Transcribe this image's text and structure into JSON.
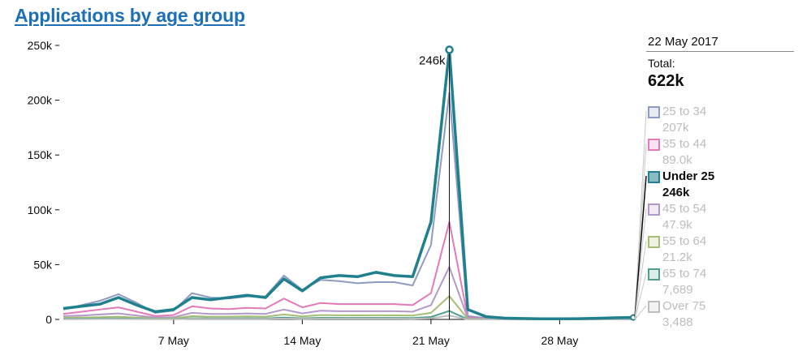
{
  "title": "Applications by age group",
  "tooltip": {
    "date": "22 May 2017",
    "total_label": "Total:",
    "total_value": "622k",
    "peak_label": "246k"
  },
  "chart_data": {
    "type": "line",
    "title": "Applications by age group",
    "xlabel": "",
    "ylabel": "",
    "x": [
      "1 May",
      "2 May",
      "3 May",
      "4 May",
      "5 May",
      "6 May",
      "7 May",
      "8 May",
      "9 May",
      "10 May",
      "11 May",
      "12 May",
      "13 May",
      "14 May",
      "15 May",
      "16 May",
      "17 May",
      "18 May",
      "19 May",
      "20 May",
      "21 May",
      "22 May",
      "23 May",
      "24 May",
      "25 May",
      "26 May",
      "27 May",
      "28 May",
      "29 May",
      "30 May",
      "31 May",
      "1 Jun"
    ],
    "x_ticks": [
      "7 May",
      "14 May",
      "21 May",
      "28 May"
    ],
    "y_ticks": [
      "0",
      "50k",
      "100k",
      "150k",
      "200k",
      "250k"
    ],
    "ylim": [
      0,
      250000
    ],
    "grid": false,
    "legend_position": "right",
    "highlighted_series": "Under 25",
    "highlighted_x": "22 May",
    "series": [
      {
        "name": "25 to 34",
        "color": "#8e9bc2",
        "values": [
          9000,
          13000,
          17000,
          23000,
          15000,
          6000,
          8000,
          24000,
          20000,
          19000,
          21000,
          21000,
          40000,
          27000,
          36000,
          35000,
          33000,
          34000,
          34000,
          31000,
          68000,
          207000,
          3000,
          1200,
          700,
          500,
          400,
          400,
          500,
          700,
          1000,
          1200
        ],
        "legend_value": "207k"
      },
      {
        "name": "35 to 44",
        "color": "#e47ab9",
        "values": [
          5000,
          7000,
          9000,
          11000,
          7000,
          3000,
          4000,
          12000,
          10000,
          9500,
          10500,
          10000,
          19000,
          11000,
          15000,
          14000,
          14000,
          14000,
          14000,
          13000,
          24000,
          89000,
          1800,
          700,
          400,
          300,
          250,
          250,
          300,
          400,
          500,
          600
        ],
        "legend_value": "89.0k"
      },
      {
        "name": "Under 25",
        "color": "#20808d",
        "values": [
          10000,
          12000,
          14000,
          20000,
          13000,
          7000,
          9000,
          20000,
          18000,
          20000,
          22000,
          20000,
          37000,
          26000,
          38000,
          40000,
          39000,
          43000,
          40000,
          39000,
          89000,
          246000,
          9000,
          2500,
          1200,
          800,
          600,
          600,
          700,
          1000,
          1500,
          1800
        ],
        "legend_value": "246k"
      },
      {
        "name": "45 to 54",
        "color": "#b299c9",
        "values": [
          3000,
          3500,
          4500,
          5500,
          3500,
          1800,
          2000,
          6000,
          5000,
          5000,
          5500,
          5000,
          9000,
          5500,
          8000,
          7500,
          7500,
          7500,
          7500,
          7000,
          13000,
          47900,
          1000,
          400,
          250,
          200,
          150,
          150,
          200,
          250,
          300,
          350
        ],
        "legend_value": "47.9k"
      },
      {
        "name": "55 to 64",
        "color": "#a5be74",
        "values": [
          1500,
          1800,
          2000,
          2500,
          1700,
          900,
          1000,
          3000,
          2500,
          2500,
          2700,
          2500,
          4500,
          2700,
          4000,
          3800,
          3700,
          3800,
          3700,
          3500,
          6000,
          21200,
          500,
          200,
          120,
          100,
          80,
          80,
          100,
          120,
          150,
          180
        ],
        "legend_value": "21.2k"
      },
      {
        "name": "65 to 74",
        "color": "#4f9f8c",
        "values": [
          600,
          700,
          800,
          900,
          650,
          350,
          400,
          1100,
          950,
          950,
          1000,
          950,
          1700,
          1000,
          1500,
          1400,
          1400,
          1400,
          1400,
          1300,
          2200,
          7689,
          180,
          70,
          40,
          30,
          25,
          25,
          30,
          40,
          50,
          60
        ],
        "legend_value": "7,689"
      },
      {
        "name": "Over 75",
        "color": "#bdbdbd",
        "values": [
          250,
          300,
          350,
          400,
          280,
          150,
          180,
          500,
          420,
          420,
          450,
          420,
          750,
          450,
          680,
          640,
          630,
          640,
          630,
          600,
          1000,
          3488,
          80,
          30,
          20,
          15,
          12,
          12,
          15,
          20,
          25,
          30
        ],
        "legend_value": "3,488"
      }
    ]
  }
}
